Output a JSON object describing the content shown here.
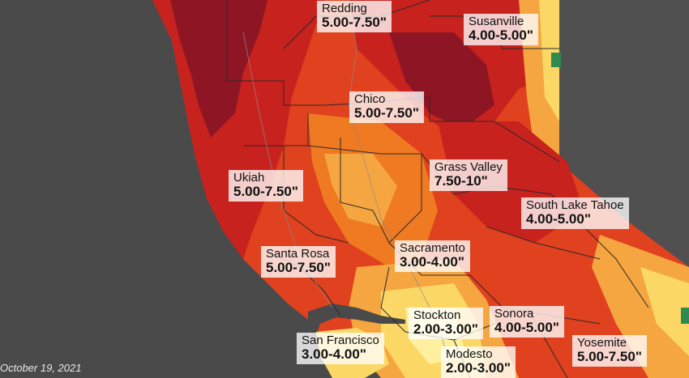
{
  "colors": {
    "ocean": "#4a4a4a",
    "nevada": "#505050",
    "deep_red": "#8e1624",
    "red": "#c8221e",
    "orange_red": "#e0411e",
    "orange": "#ef7a22",
    "light_orange": "#f6a640",
    "yellow": "#fbd866",
    "pale_yellow": "#fff0a0",
    "green": "#2f8a4f",
    "boundary": "#2a2a2a"
  },
  "labels": [
    {
      "city": "Redding",
      "range": "5.00-7.50\""
    },
    {
      "city": "Susanville",
      "range": "4.00-5.00\""
    },
    {
      "city": "Chico",
      "range": "5.00-7.50\""
    },
    {
      "city": "Grass Valley",
      "range": "7.50-10\""
    },
    {
      "city": "Ukiah",
      "range": "5.00-7.50\""
    },
    {
      "city": "South Lake Tahoe",
      "range": "4.00-5.00\""
    },
    {
      "city": "Santa Rosa",
      "range": "5.00-7.50\""
    },
    {
      "city": "Sacramento",
      "range": "3.00-4.00\""
    },
    {
      "city": "Stockton",
      "range": "2.00-3.00\""
    },
    {
      "city": "Sonora",
      "range": "4.00-5.00\""
    },
    {
      "city": "San Francisco",
      "range": "3.00-4.00\""
    },
    {
      "city": "Yosemite",
      "range": "5.00-7.50\""
    },
    {
      "city": "Modesto",
      "range": "2.00-3.00\""
    }
  ],
  "date_text": "October 19, 2021"
}
